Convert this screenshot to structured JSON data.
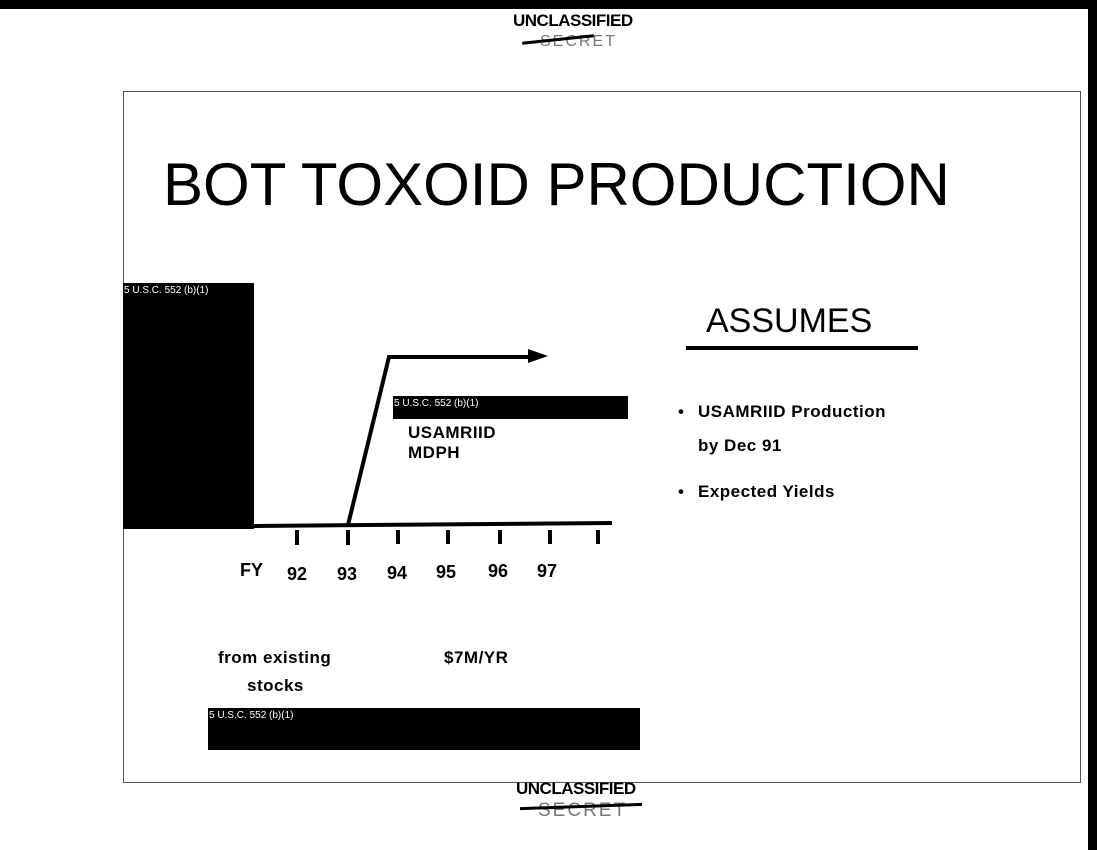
{
  "header": {
    "marking": "UNCLASSIFIED",
    "struck_marking": "SECRET"
  },
  "footer": {
    "marking": "UNCLASSIFIED",
    "struck_marking": "SECRET"
  },
  "slide": {
    "title": "BOT TOXOID PRODUCTION",
    "redactions": [
      "5 U.S.C. 552 (b)(1)",
      "5 U.S.C. 552 (b)(1)",
      "5 U.S.C. 552 (b)(1)"
    ],
    "timeline": {
      "axis_label": "FY",
      "years": [
        "92",
        "93",
        "94",
        "95",
        "96",
        "97"
      ],
      "producers": [
        "USAMRIID",
        "MDPH"
      ]
    },
    "notes": {
      "left": [
        "from existing",
        "stocks"
      ],
      "cost": "$7M/YR"
    },
    "assumes": {
      "heading": "ASSUMES",
      "bullets": [
        {
          "bullet": "•",
          "lines": [
            "USAMRIID Production",
            "by Dec 91"
          ]
        },
        {
          "bullet": "•",
          "lines": [
            "Expected Yields"
          ]
        }
      ]
    }
  }
}
